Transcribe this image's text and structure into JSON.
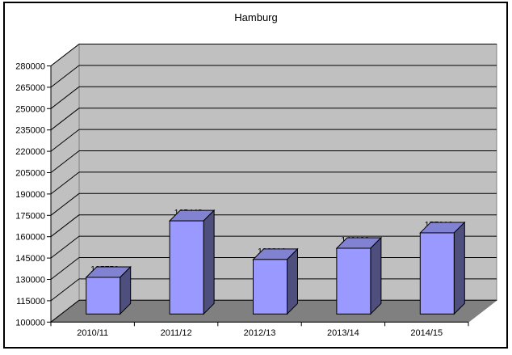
{
  "window": {
    "background_color": "#FFFFFF",
    "border_color": "#000000"
  },
  "chart_data": {
    "type": "bar",
    "variant": "3d-clustered-column",
    "title": "Hamburg",
    "categories": [
      "2010/11",
      "2011/12",
      "2012/13",
      "2013/14",
      "2014/15"
    ],
    "series": [
      {
        "name": "Hamburg",
        "values": [
          125759,
          165443,
          138316,
          146199,
          157018
        ],
        "data_labels": [
          "125759",
          "165443",
          "138316",
          "146199",
          "157018"
        ]
      }
    ],
    "xlabel": "",
    "ylabel": "",
    "ylim": [
      100000,
      280000
    ],
    "ytick_step": 15000,
    "yticks": [
      100000,
      115000,
      130000,
      145000,
      160000,
      175000,
      190000,
      205000,
      220000,
      235000,
      250000,
      265000,
      280000
    ],
    "grid": true,
    "legend_position": "none",
    "colors": {
      "bar_front": "#9999FF",
      "bar_top": "#8282D2",
      "bar_side": "#4F4F7D",
      "wall": "#C0C0C0",
      "floor": "#808080",
      "wall_outline": "#808080",
      "gridline": "#000000",
      "axis": "#000000",
      "text": "#000000"
    }
  }
}
